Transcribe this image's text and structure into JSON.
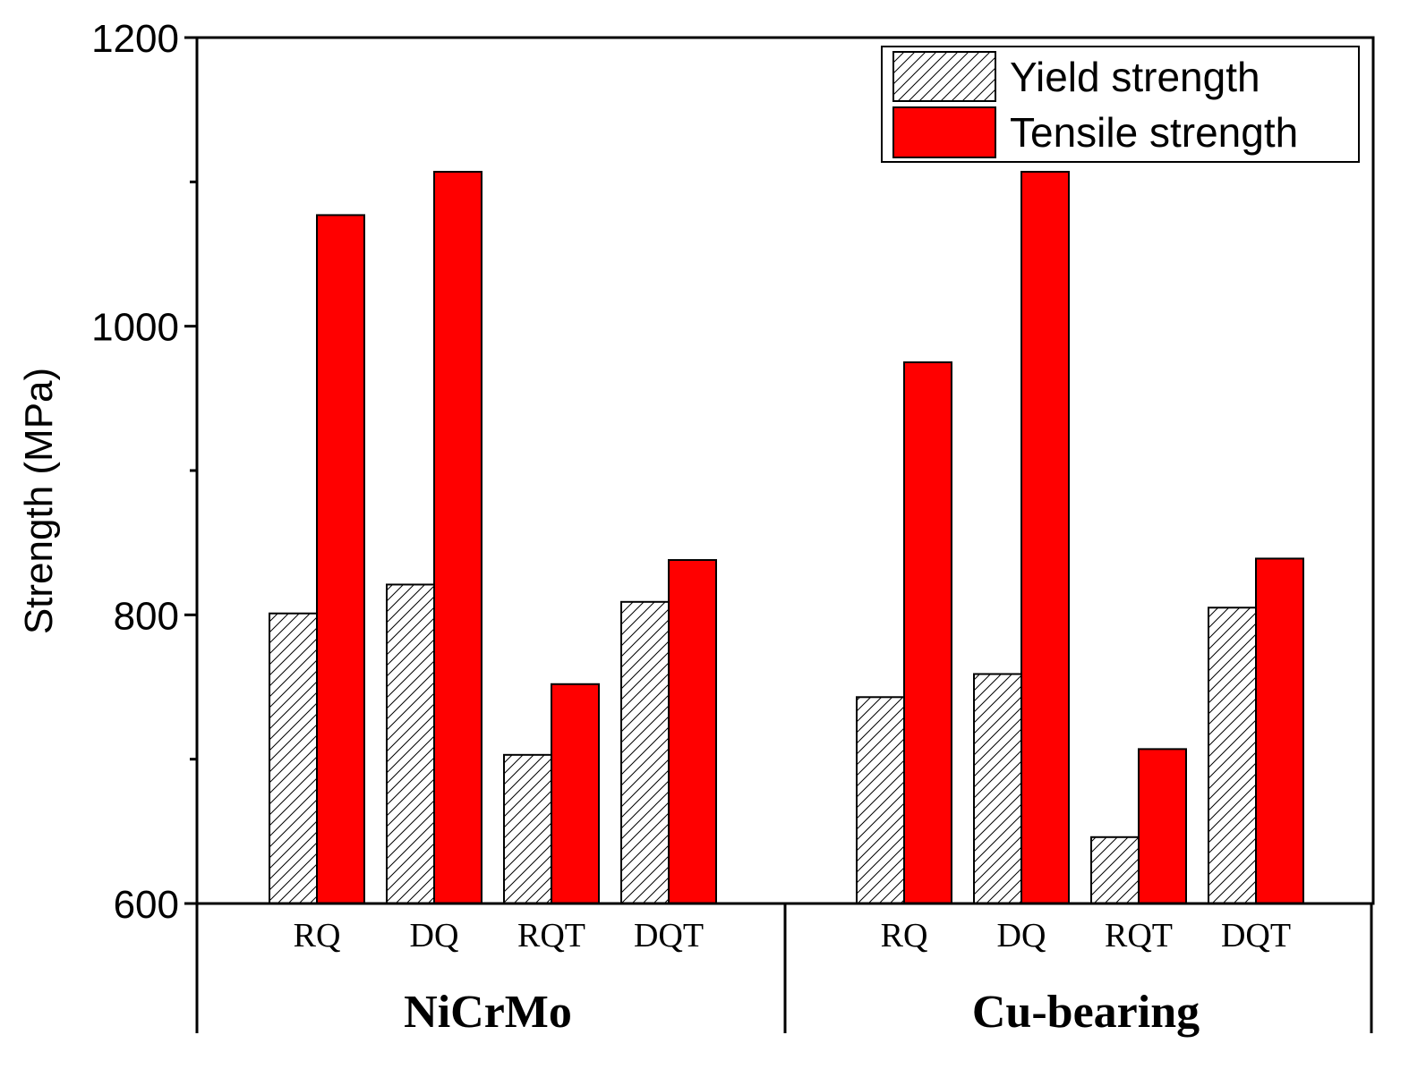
{
  "chart_data": {
    "type": "bar",
    "ylabel": "Strength (MPa)",
    "ylim": [
      600,
      1200
    ],
    "yticks": [
      "600",
      "800",
      "1000",
      "1200"
    ],
    "groups": [
      {
        "name": "NiCrMo",
        "categories": [
          "RQ",
          "DQ",
          "RQT",
          "DQT"
        ]
      },
      {
        "name": "Cu-bearing",
        "categories": [
          "RQ",
          "DQ",
          "RQT",
          "DQT"
        ]
      }
    ],
    "series": [
      {
        "name": "Yield strength",
        "pattern": "hatched",
        "color": "#ffffff",
        "values": [
          [
            801,
            821,
            703,
            809
          ],
          [
            743,
            759,
            646,
            805
          ]
        ]
      },
      {
        "name": "Tensile strength",
        "pattern": "solid",
        "color": "#ff0000",
        "values": [
          [
            1077,
            1107,
            752,
            838
          ],
          [
            975,
            1107,
            707,
            839
          ]
        ]
      }
    ],
    "legend": "top-right"
  }
}
